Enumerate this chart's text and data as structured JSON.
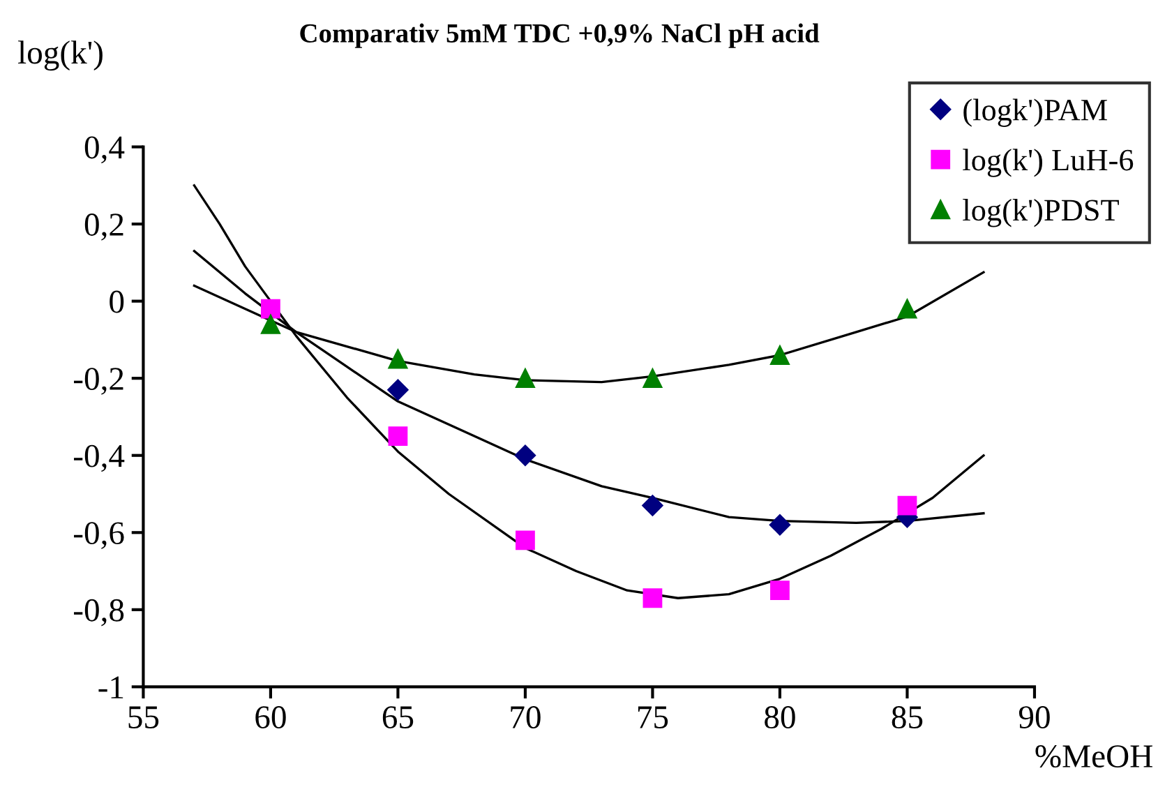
{
  "chart_data": {
    "type": "scatter",
    "title": "Comparativ 5mM TDC +0,9% NaCl pH acid",
    "xlabel": "%MeOH",
    "ylabel": "log(k')",
    "xlim": [
      55,
      90
    ],
    "xticks": [
      55,
      60,
      65,
      70,
      75,
      80,
      85,
      90
    ],
    "ylim": [
      -1,
      0.4
    ],
    "yticks": [
      {
        "value": -1,
        "label": "-1"
      },
      {
        "value": -0.8,
        "label": "-0,8"
      },
      {
        "value": -0.6,
        "label": "-0,6"
      },
      {
        "value": -0.4,
        "label": "-0,4"
      },
      {
        "value": -0.2,
        "label": "-0,2"
      },
      {
        "value": 0,
        "label": "0"
      },
      {
        "value": 0.2,
        "label": "0,2"
      },
      {
        "value": 0.4,
        "label": "0,4"
      }
    ],
    "grid": false,
    "legend": "top right",
    "series": [
      {
        "name": "(logk')PAM",
        "marker": "diamond",
        "color": "#000080",
        "x": [
          65,
          70,
          75,
          80,
          85
        ],
        "values": [
          -0.23,
          -0.4,
          -0.53,
          -0.58,
          -0.56
        ]
      },
      {
        "name": "log(k') LuH-6",
        "marker": "square",
        "color": "#ff00ff",
        "x": [
          60,
          65,
          70,
          75,
          80,
          85
        ],
        "values": [
          -0.02,
          -0.35,
          -0.62,
          -0.77,
          -0.75,
          -0.53
        ]
      },
      {
        "name": "log(k')PDST",
        "marker": "triangle",
        "color": "#008000",
        "x": [
          60,
          65,
          70,
          75,
          80,
          85
        ],
        "values": [
          -0.06,
          -0.15,
          -0.2,
          -0.2,
          -0.14,
          -0.02
        ]
      },
      {
        "type": "line",
        "color": "#000000",
        "x": [
          57,
          59,
          61,
          63,
          65,
          68,
          70,
          73,
          75,
          78,
          80,
          83,
          85,
          88
        ],
        "values": [
          0.13,
          0.02,
          -0.08,
          -0.17,
          -0.26,
          -0.35,
          -0.41,
          -0.48,
          -0.51,
          -0.56,
          -0.57,
          -0.575,
          -0.57,
          -0.55
        ]
      },
      {
        "type": "line",
        "color": "#000000",
        "x": [
          57,
          58,
          59,
          61,
          63,
          65,
          67,
          70,
          72,
          74,
          76,
          78,
          80,
          82,
          84,
          86,
          88
        ],
        "values": [
          0.3,
          0.2,
          0.09,
          -0.09,
          -0.25,
          -0.39,
          -0.5,
          -0.64,
          -0.7,
          -0.75,
          -0.77,
          -0.76,
          -0.72,
          -0.66,
          -0.59,
          -0.51,
          -0.4
        ]
      },
      {
        "type": "line",
        "color": "#000000",
        "x": [
          57,
          60,
          61,
          65,
          68,
          70,
          73,
          75,
          78,
          80,
          83,
          85,
          88
        ],
        "values": [
          0.04,
          -0.05,
          -0.08,
          -0.155,
          -0.19,
          -0.205,
          -0.21,
          -0.195,
          -0.165,
          -0.14,
          -0.08,
          -0.04,
          0.075
        ]
      }
    ]
  }
}
